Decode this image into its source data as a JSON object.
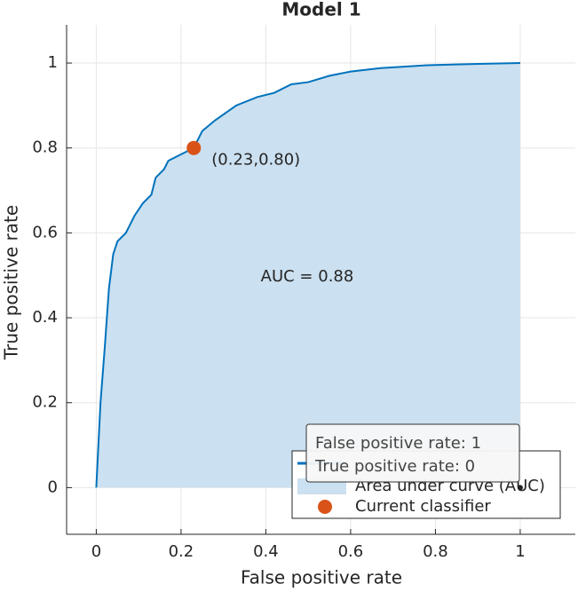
{
  "chart_data": {
    "type": "line",
    "title": "Model 1",
    "xlabel": "False positive rate",
    "ylabel": "True positive rate",
    "xlim": [
      -0.07,
      1.13
    ],
    "ylim": [
      -0.11,
      1.09
    ],
    "xticks": [
      0,
      0.2,
      0.4,
      0.6,
      0.8,
      1
    ],
    "yticks": [
      0,
      0.2,
      0.4,
      0.6,
      0.8,
      1
    ],
    "grid": true,
    "series": [
      {
        "name": "Area under curve (AUC)",
        "color": "#0072bd",
        "fill_color": "#cbe0f0",
        "x": [
          0,
          0.005,
          0.01,
          0.02,
          0.03,
          0.04,
          0.05,
          0.07,
          0.09,
          0.11,
          0.13,
          0.14,
          0.16,
          0.17,
          0.2,
          0.23,
          0.25,
          0.28,
          0.33,
          0.38,
          0.42,
          0.46,
          0.5,
          0.55,
          0.6,
          0.67,
          0.78,
          0.9,
          1
        ],
        "values": [
          0,
          0.1,
          0.2,
          0.33,
          0.47,
          0.55,
          0.58,
          0.6,
          0.64,
          0.67,
          0.69,
          0.73,
          0.75,
          0.77,
          0.785,
          0.8,
          0.84,
          0.865,
          0.9,
          0.92,
          0.93,
          0.95,
          0.955,
          0.97,
          0.98,
          0.988,
          0.995,
          0.998,
          1
        ]
      }
    ],
    "classifier": {
      "name": "Current classifier",
      "color": "#d95319",
      "x": 0.23,
      "y": 0.8,
      "label": "(0.23,0.80)"
    },
    "annotation": "AUC = 0.88",
    "datatip": {
      "x": 1,
      "y": 0,
      "lines": [
        "False positive rate: 1",
        "True positive rate: 0"
      ]
    }
  }
}
